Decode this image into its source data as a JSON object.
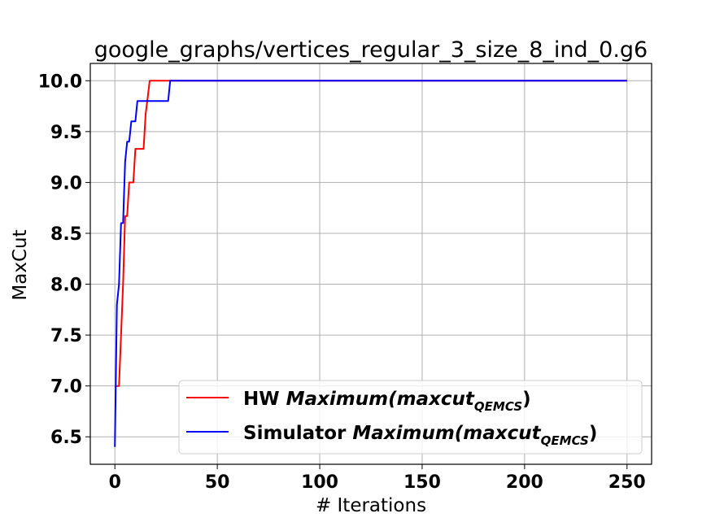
{
  "chart_data": {
    "type": "line",
    "title": "google_graphs/vertices_regular_3_size_8_ind_0.g6",
    "xlabel": "# Iterations",
    "ylabel": "MaxCut",
    "xlim": [
      -12,
      262
    ],
    "ylim": [
      6.23,
      10.17
    ],
    "xticks": [
      0,
      50,
      100,
      150,
      200,
      250
    ],
    "yticks": [
      6.5,
      7.0,
      7.5,
      8.0,
      8.5,
      9.0,
      9.5,
      10.0
    ],
    "xtick_labels": [
      "0",
      "50",
      "100",
      "150",
      "200",
      "250"
    ],
    "ytick_labels": [
      "6.5",
      "7.0",
      "7.5",
      "8.0",
      "8.5",
      "9.0",
      "9.5",
      "10.0"
    ],
    "grid": true,
    "legend_position": "lower-right",
    "series": [
      {
        "name_prefix": "HW",
        "name_math": "Maximum(maxcut",
        "name_sub": "QEMCS",
        "name_suffix": ")",
        "color": "#ff0000",
        "points": [
          [
            0,
            7.0
          ],
          [
            1,
            7.0
          ],
          [
            2,
            7.0
          ],
          [
            3,
            7.5
          ],
          [
            4,
            8.0
          ],
          [
            5,
            8.67
          ],
          [
            6,
            8.67
          ],
          [
            7,
            9.0
          ],
          [
            8,
            9.0
          ],
          [
            9,
            9.0
          ],
          [
            10,
            9.33
          ],
          [
            11,
            9.33
          ],
          [
            12,
            9.33
          ],
          [
            13,
            9.33
          ],
          [
            14,
            9.33
          ],
          [
            15,
            9.67
          ],
          [
            16,
            9.83
          ],
          [
            17,
            10.0
          ],
          [
            50,
            10.0
          ],
          [
            100,
            10.0
          ],
          [
            150,
            10.0
          ],
          [
            200,
            10.0
          ],
          [
            250,
            10.0
          ]
        ]
      },
      {
        "name_prefix": "Simulator",
        "name_math": "Maximum(maxcut",
        "name_sub": "QEMCS",
        "name_suffix": ")",
        "color": "#0000ff",
        "points": [
          [
            0,
            6.4
          ],
          [
            1,
            7.8
          ],
          [
            2,
            8.0
          ],
          [
            3,
            8.6
          ],
          [
            4,
            8.6
          ],
          [
            5,
            9.2
          ],
          [
            6,
            9.4
          ],
          [
            7,
            9.4
          ],
          [
            8,
            9.6
          ],
          [
            9,
            9.6
          ],
          [
            10,
            9.6
          ],
          [
            11,
            9.8
          ],
          [
            12,
            9.8
          ],
          [
            26,
            9.8
          ],
          [
            27,
            10.0
          ],
          [
            50,
            10.0
          ],
          [
            100,
            10.0
          ],
          [
            150,
            10.0
          ],
          [
            200,
            10.0
          ],
          [
            250,
            10.0
          ]
        ]
      }
    ]
  }
}
